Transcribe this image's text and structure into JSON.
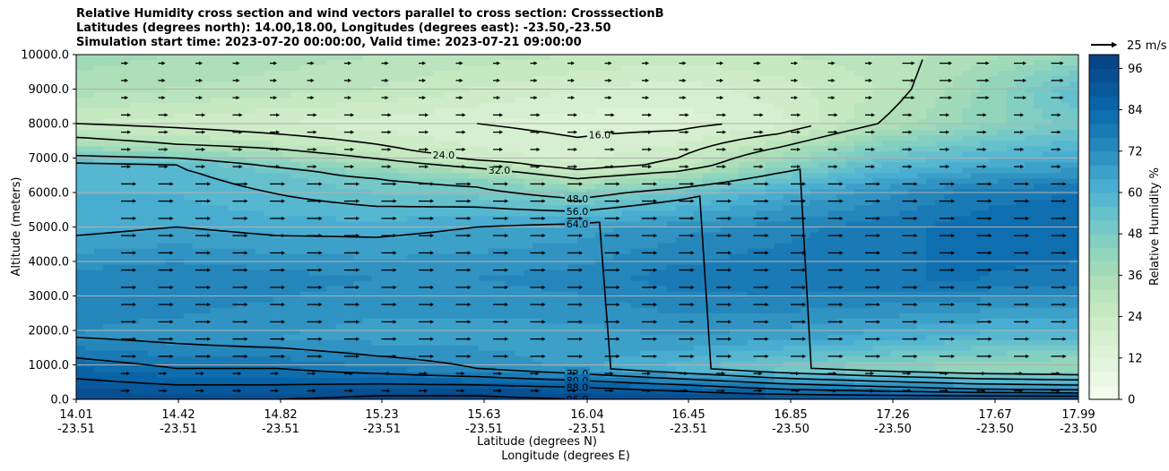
{
  "chart_data": {
    "type": "contour",
    "title_lines": [
      "Relative Humidity cross section and wind vectors parallel to cross section: CrosssectionB",
      "Latitudes (degrees north): 14.00,18.00, Longitudes (degrees east): -23.50,-23.50",
      "Simulation start time: 2023-07-20 00:00:00, Valid time: 2023-07-21 09:00:00"
    ],
    "ylabel": "Altitude (meters)",
    "xlabel_lat": "Latitude (degrees N)",
    "xlabel_lon": "Longitude (degrees E)",
    "ylim": [
      0,
      10000
    ],
    "y_ticks": [
      "0.0",
      "1000.0",
      "2000.0",
      "3000.0",
      "4000.0",
      "5000.0",
      "6000.0",
      "7000.0",
      "8000.0",
      "9000.0",
      "10000.0"
    ],
    "x_ticks": [
      {
        "lat": "14.01",
        "lon": "-23.51"
      },
      {
        "lat": "14.42",
        "lon": "-23.51"
      },
      {
        "lat": "14.82",
        "lon": "-23.51"
      },
      {
        "lat": "15.23",
        "lon": "-23.51"
      },
      {
        "lat": "15.63",
        "lon": "-23.51"
      },
      {
        "lat": "16.04",
        "lon": "-23.51"
      },
      {
        "lat": "16.45",
        "lon": "-23.51"
      },
      {
        "lat": "16.85",
        "lon": "-23.50"
      },
      {
        "lat": "17.26",
        "lon": "-23.50"
      },
      {
        "lat": "17.67",
        "lon": "-23.50"
      },
      {
        "lat": "17.99",
        "lon": "-23.50"
      }
    ],
    "grid": "horizontal",
    "colorbar": {
      "label": "Relative Humidity %",
      "ticks": [
        "0",
        "12",
        "24",
        "36",
        "48",
        "60",
        "72",
        "84",
        "96"
      ],
      "levels_step": 4,
      "range": [
        0,
        100
      ],
      "colormap": "GnBu"
    },
    "quiver_key": "25 m/s",
    "profiles": [
      {
        "x": 0.0,
        "levels": [
          [
            0,
            96
          ],
          [
            300,
            92
          ],
          [
            900,
            84
          ],
          [
            1800,
            72
          ],
          [
            3500,
            74
          ],
          [
            5000,
            62
          ],
          [
            6800,
            58
          ],
          [
            7400,
            36
          ],
          [
            8000,
            24
          ],
          [
            9000,
            34
          ],
          [
            10000,
            38
          ]
        ]
      },
      {
        "x": 0.1,
        "levels": [
          [
            0,
            96
          ],
          [
            300,
            90
          ],
          [
            900,
            80
          ],
          [
            1800,
            70
          ],
          [
            3500,
            76
          ],
          [
            5000,
            64
          ],
          [
            6800,
            56
          ],
          [
            7400,
            32
          ],
          [
            8000,
            22
          ],
          [
            9000,
            32
          ],
          [
            10000,
            36
          ]
        ]
      },
      {
        "x": 0.2,
        "levels": [
          [
            0,
            96
          ],
          [
            300,
            90
          ],
          [
            900,
            80
          ],
          [
            1800,
            68
          ],
          [
            3500,
            74
          ],
          [
            5000,
            62
          ],
          [
            6600,
            52
          ],
          [
            7400,
            28
          ],
          [
            8000,
            20
          ],
          [
            9000,
            30
          ],
          [
            10000,
            34
          ]
        ]
      },
      {
        "x": 0.3,
        "levels": [
          [
            0,
            98
          ],
          [
            300,
            92
          ],
          [
            900,
            76
          ],
          [
            1800,
            66
          ],
          [
            3500,
            72
          ],
          [
            5000,
            62
          ],
          [
            6400,
            48
          ],
          [
            7200,
            26
          ],
          [
            8000,
            18
          ],
          [
            9000,
            28
          ],
          [
            10000,
            32
          ]
        ]
      },
      {
        "x": 0.4,
        "levels": [
          [
            0,
            98
          ],
          [
            300,
            92
          ],
          [
            900,
            72
          ],
          [
            1800,
            66
          ],
          [
            3500,
            72
          ],
          [
            5000,
            64
          ],
          [
            6300,
            46
          ],
          [
            7000,
            22
          ],
          [
            8000,
            16
          ],
          [
            9000,
            24
          ],
          [
            10000,
            30
          ]
        ]
      },
      {
        "x": 0.5,
        "levels": [
          [
            0,
            96
          ],
          [
            300,
            90
          ],
          [
            900,
            66
          ],
          [
            1800,
            66
          ],
          [
            3500,
            74
          ],
          [
            5000,
            66
          ],
          [
            6000,
            44
          ],
          [
            6800,
            20
          ],
          [
            8000,
            14
          ],
          [
            9000,
            20
          ],
          [
            10000,
            28
          ]
        ]
      },
      {
        "x": 0.6,
        "levels": [
          [
            0,
            96
          ],
          [
            300,
            86
          ],
          [
            900,
            58
          ],
          [
            1800,
            68
          ],
          [
            3500,
            78
          ],
          [
            5000,
            70
          ],
          [
            6000,
            52
          ],
          [
            6800,
            26
          ],
          [
            8000,
            14
          ],
          [
            9000,
            18
          ],
          [
            10000,
            26
          ]
        ]
      },
      {
        "x": 0.7,
        "levels": [
          [
            0,
            96
          ],
          [
            300,
            80
          ],
          [
            900,
            50
          ],
          [
            1800,
            66
          ],
          [
            3500,
            80
          ],
          [
            5000,
            74
          ],
          [
            6000,
            62
          ],
          [
            6800,
            42
          ],
          [
            8000,
            18
          ],
          [
            9000,
            22
          ],
          [
            10000,
            28
          ]
        ]
      },
      {
        "x": 0.8,
        "levels": [
          [
            0,
            96
          ],
          [
            300,
            76
          ],
          [
            900,
            44
          ],
          [
            1800,
            62
          ],
          [
            3500,
            80
          ],
          [
            5000,
            78
          ],
          [
            6000,
            70
          ],
          [
            6800,
            56
          ],
          [
            8000,
            32
          ],
          [
            9000,
            28
          ],
          [
            10000,
            30
          ]
        ]
      },
      {
        "x": 0.9,
        "levels": [
          [
            0,
            96
          ],
          [
            300,
            72
          ],
          [
            900,
            40
          ],
          [
            1800,
            58
          ],
          [
            3500,
            80
          ],
          [
            5000,
            82
          ],
          [
            6000,
            78
          ],
          [
            6800,
            62
          ],
          [
            8000,
            42
          ],
          [
            9000,
            40
          ],
          [
            10000,
            34
          ]
        ]
      },
      {
        "x": 1.0,
        "levels": [
          [
            0,
            96
          ],
          [
            300,
            70
          ],
          [
            900,
            38
          ],
          [
            1800,
            56
          ],
          [
            3500,
            78
          ],
          [
            5000,
            84
          ],
          [
            6000,
            80
          ],
          [
            6800,
            66
          ],
          [
            8000,
            50
          ],
          [
            9000,
            56
          ],
          [
            10000,
            40
          ]
        ]
      }
    ],
    "contour_levels": [
      16,
      24,
      32,
      48,
      56,
      64,
      72,
      80,
      88,
      96
    ]
  }
}
